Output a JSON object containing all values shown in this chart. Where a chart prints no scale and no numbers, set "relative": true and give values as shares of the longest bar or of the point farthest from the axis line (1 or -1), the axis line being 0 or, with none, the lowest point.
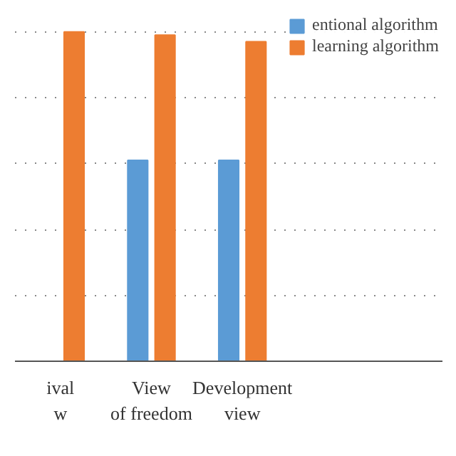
{
  "chart_data": {
    "type": "bar",
    "relative": true,
    "categories": [
      "ival\nw",
      "View\nof freedom",
      "Development\nview",
      null
    ],
    "series": [
      {
        "name": "entional algorithm",
        "color": "#5b9bd5",
        "values": [
          null,
          0.61,
          0.61,
          null
        ]
      },
      {
        "name": "learning algorithm",
        "color": "#ed7d31",
        "values": [
          1,
          0.99,
          0.97,
          null
        ]
      }
    ],
    "grid": "y",
    "legend": "top right"
  }
}
